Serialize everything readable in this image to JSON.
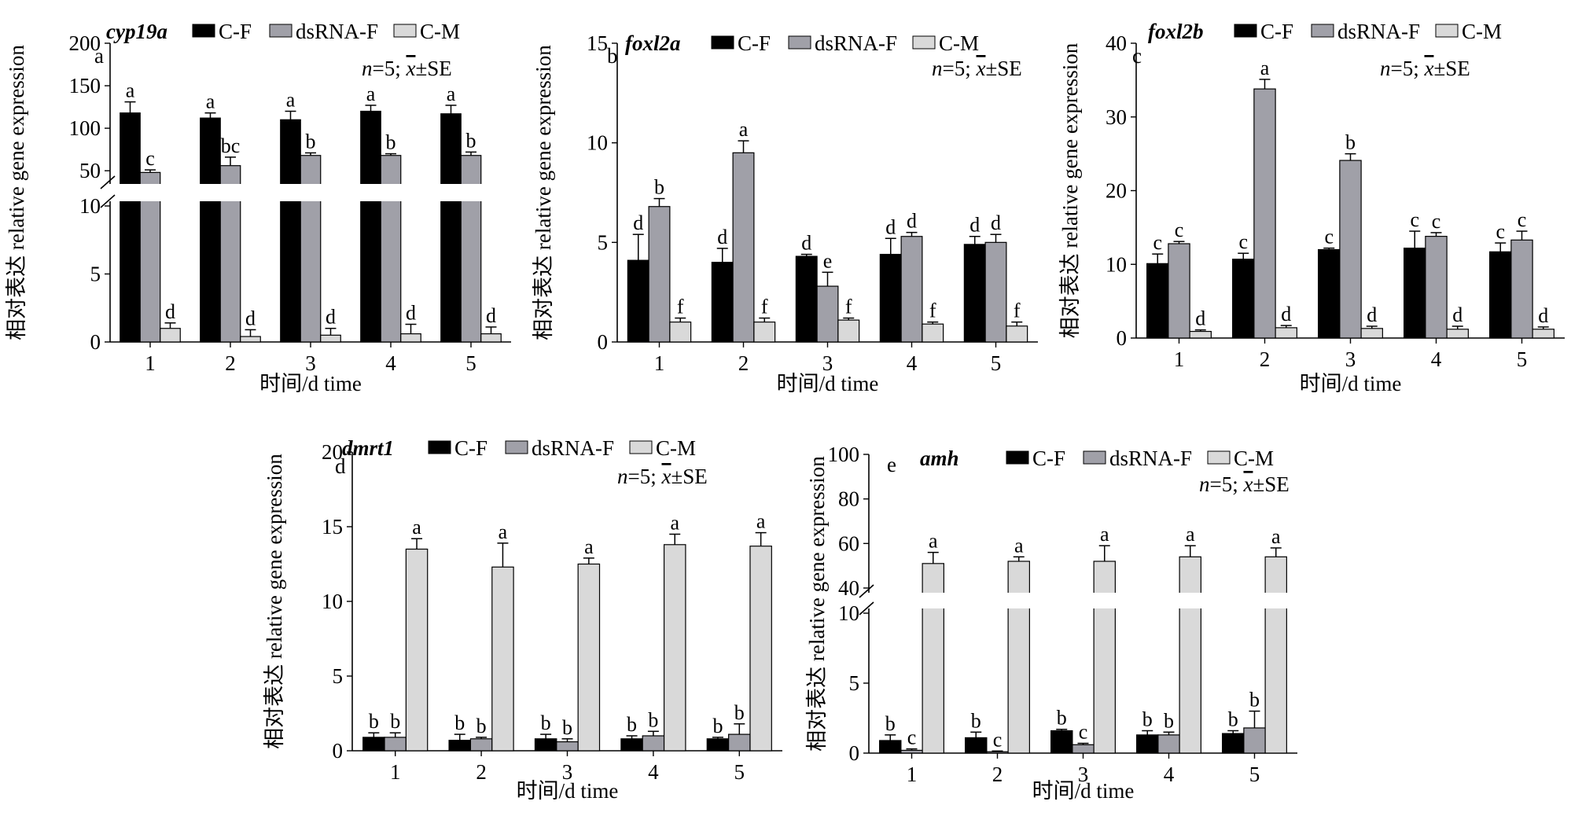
{
  "colors": {
    "C-F": "#000000",
    "dsRNA-F": "#a0a0a8",
    "C-M": "#d9d9d9"
  },
  "shared": {
    "ylabel": "相对表达 relative gene expression",
    "xlabel": "时间/d time",
    "annotation_n": "n",
    "annotation_rest": "=5; ",
    "annotation_x": "x",
    "annotation_se": "±SE",
    "legend": [
      "C-F",
      "dsRNA-F",
      "C-M"
    ]
  },
  "chart_data": [
    {
      "panel": "a",
      "gene": "cyp19a",
      "type": "bar",
      "categories": [
        "1",
        "2",
        "3",
        "4",
        "5"
      ],
      "broken_axis": {
        "lower": [
          0,
          10
        ],
        "upper": [
          40,
          200
        ]
      },
      "yticks": [
        0,
        5,
        10,
        50,
        100,
        150,
        200
      ],
      "series": [
        {
          "name": "C-F",
          "values": [
            118,
            112,
            110,
            120,
            117
          ],
          "errors": [
            13,
            6,
            10,
            7,
            10
          ],
          "labels": [
            "a",
            "a",
            "a",
            "a",
            "a"
          ]
        },
        {
          "name": "dsRNA-F",
          "values": [
            48,
            56,
            68,
            68,
            68
          ],
          "errors": [
            3,
            10,
            3,
            2,
            4
          ],
          "labels": [
            "c",
            "bc",
            "b",
            "b",
            "b"
          ]
        },
        {
          "name": "C-M",
          "values": [
            1.0,
            0.4,
            0.5,
            0.6,
            0.6
          ],
          "errors": [
            0.4,
            0.5,
            0.5,
            0.7,
            0.5
          ],
          "labels": [
            "d",
            "d",
            "d",
            "d",
            "d"
          ]
        }
      ]
    },
    {
      "panel": "b",
      "gene": "foxl2a",
      "type": "bar",
      "categories": [
        "1",
        "2",
        "3",
        "4",
        "5"
      ],
      "ylim": [
        0,
        15
      ],
      "yticks": [
        0,
        5,
        10,
        15
      ],
      "series": [
        {
          "name": "C-F",
          "values": [
            4.1,
            4.0,
            4.3,
            4.4,
            4.9
          ],
          "errors": [
            1.3,
            0.7,
            0.1,
            0.8,
            0.4
          ],
          "labels": [
            "d",
            "d",
            "d",
            "d",
            "d"
          ]
        },
        {
          "name": "dsRNA-F",
          "values": [
            6.8,
            9.5,
            2.8,
            5.3,
            5.0
          ],
          "errors": [
            0.4,
            0.6,
            0.7,
            0.2,
            0.4
          ],
          "labels": [
            "b",
            "a",
            "e",
            "d",
            "d"
          ]
        },
        {
          "name": "C-M",
          "values": [
            1.0,
            1.0,
            1.1,
            0.9,
            0.8
          ],
          "errors": [
            0.2,
            0.2,
            0.1,
            0.1,
            0.2
          ],
          "labels": [
            "f",
            "f",
            "f",
            "f",
            "f"
          ]
        }
      ]
    },
    {
      "panel": "c",
      "gene": "foxl2b",
      "type": "bar",
      "categories": [
        "1",
        "2",
        "3",
        "4",
        "5"
      ],
      "ylim": [
        0,
        40
      ],
      "yticks": [
        0,
        10,
        20,
        30,
        40
      ],
      "series": [
        {
          "name": "C-F",
          "values": [
            10.1,
            10.7,
            12.0,
            12.2,
            11.7
          ],
          "errors": [
            1.3,
            0.8,
            0.2,
            2.3,
            1.2
          ],
          "labels": [
            "c",
            "c",
            "c",
            "c",
            "c"
          ]
        },
        {
          "name": "dsRNA-F",
          "values": [
            12.8,
            33.8,
            24.1,
            13.8,
            13.3
          ],
          "errors": [
            0.3,
            1.3,
            0.9,
            0.5,
            1.2
          ],
          "labels": [
            "c",
            "a",
            "b",
            "c",
            "c"
          ]
        },
        {
          "name": "C-M",
          "values": [
            0.9,
            1.4,
            1.3,
            1.2,
            1.2
          ],
          "errors": [
            0.2,
            0.3,
            0.3,
            0.4,
            0.3
          ],
          "labels": [
            "d",
            "d",
            "d",
            "d",
            "d"
          ]
        }
      ]
    },
    {
      "panel": "d",
      "gene": "dmrt1",
      "type": "bar",
      "categories": [
        "1",
        "2",
        "3",
        "4",
        "5"
      ],
      "ylim": [
        0,
        20
      ],
      "yticks": [
        0,
        5,
        10,
        15,
        20
      ],
      "series": [
        {
          "name": "C-F",
          "values": [
            0.9,
            0.7,
            0.8,
            0.8,
            0.8
          ],
          "errors": [
            0.3,
            0.4,
            0.3,
            0.2,
            0.1
          ],
          "labels": [
            "b",
            "b",
            "b",
            "b",
            "b"
          ]
        },
        {
          "name": "dsRNA-F",
          "values": [
            0.9,
            0.8,
            0.6,
            1.0,
            1.1
          ],
          "errors": [
            0.3,
            0.1,
            0.2,
            0.3,
            0.7
          ],
          "labels": [
            "b",
            "b",
            "b",
            "b",
            "b"
          ]
        },
        {
          "name": "C-M",
          "values": [
            13.5,
            12.3,
            12.5,
            13.8,
            13.7
          ],
          "errors": [
            0.7,
            1.6,
            0.4,
            0.7,
            0.9
          ],
          "labels": [
            "a",
            "a",
            "a",
            "a",
            "a"
          ]
        }
      ]
    },
    {
      "panel": "e",
      "gene": "amh",
      "type": "bar",
      "categories": [
        "1",
        "2",
        "3",
        "4",
        "5"
      ],
      "broken_axis": {
        "lower": [
          0,
          10
        ],
        "upper": [
          40,
          100
        ]
      },
      "yticks": [
        0,
        5,
        10,
        40,
        60,
        80,
        100
      ],
      "series": [
        {
          "name": "C-F",
          "values": [
            0.9,
            1.1,
            1.6,
            1.3,
            1.4
          ],
          "errors": [
            0.4,
            0.4,
            0.1,
            0.3,
            0.2
          ],
          "labels": [
            "b",
            "b",
            "b",
            "b",
            "b"
          ]
        },
        {
          "name": "dsRNA-F",
          "values": [
            0.2,
            0.1,
            0.6,
            1.3,
            1.8
          ],
          "errors": [
            0.1,
            0.05,
            0.1,
            0.2,
            1.2
          ],
          "labels": [
            "c",
            "c",
            "c",
            "b",
            "b"
          ]
        },
        {
          "name": "C-M",
          "values": [
            51,
            52,
            52,
            54,
            54
          ],
          "errors": [
            5,
            2,
            7,
            5,
            4
          ],
          "labels": [
            "a",
            "a",
            "a",
            "a",
            "a"
          ]
        }
      ]
    }
  ]
}
